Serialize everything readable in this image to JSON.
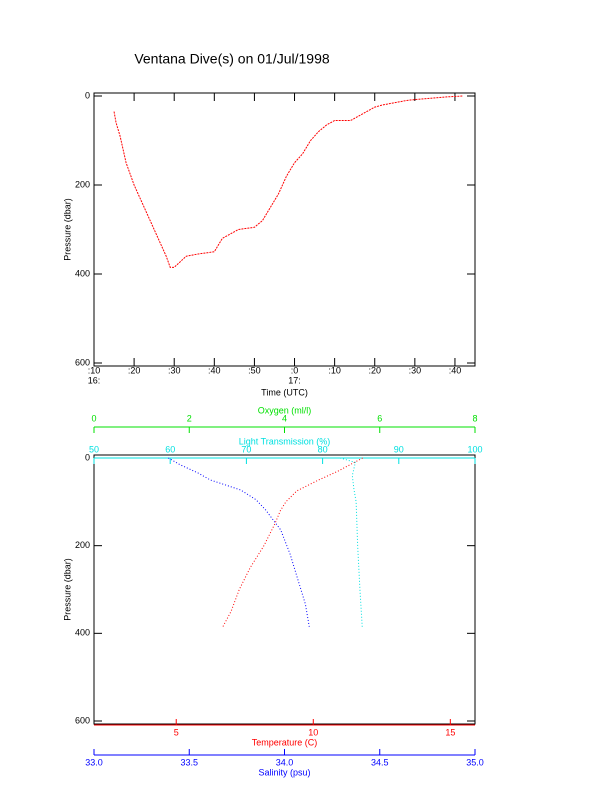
{
  "chart_data": [
    {
      "type": "line",
      "title": "Ventana Dive(s) on 01/Jul/1998",
      "xlabel": "Time (UTC)",
      "ylabel": "Pressure (dbar)",
      "xlim": [
        970,
        1065
      ],
      "ylim": [
        0,
        600
      ],
      "y_inverted": true,
      "xticks": [
        {
          "value": 970,
          "label": ":10"
        },
        {
          "value": 980,
          "label": ":20"
        },
        {
          "value": 990,
          "label": ":30"
        },
        {
          "value": 1000,
          "label": ":40"
        },
        {
          "value": 1010,
          "label": ":50"
        },
        {
          "value": 1020,
          "label": ":0"
        },
        {
          "value": 1030,
          "label": ":10"
        },
        {
          "value": 1040,
          "label": ":20"
        },
        {
          "value": 1050,
          "label": ":30"
        },
        {
          "value": 1060,
          "label": ":40"
        }
      ],
      "xtick_sublabels": [
        {
          "value": 970,
          "label": "16:"
        },
        {
          "value": 1020,
          "label": "17:"
        }
      ],
      "yticks": [
        0,
        200,
        400,
        600
      ],
      "color": "#ff0000",
      "x": [
        975,
        975.5,
        976.5,
        978,
        980,
        982,
        984,
        986,
        988,
        989,
        990,
        993,
        996,
        1000,
        1002,
        1006,
        1010,
        1012,
        1014,
        1016,
        1018,
        1020,
        1022,
        1024,
        1026,
        1028,
        1030,
        1034,
        1036,
        1038,
        1040,
        1042,
        1045,
        1048,
        1050,
        1054,
        1058,
        1062
      ],
      "values": [
        35,
        60,
        90,
        150,
        200,
        240,
        280,
        320,
        360,
        385,
        385,
        360,
        355,
        350,
        320,
        300,
        295,
        280,
        250,
        220,
        180,
        150,
        130,
        100,
        80,
        65,
        55,
        55,
        45,
        35,
        25,
        20,
        15,
        10,
        8,
        5,
        2,
        0
      ]
    },
    {
      "type": "scatter",
      "ylabel": "Pressure (dbar)",
      "ylim": [
        0,
        600
      ],
      "y_inverted": true,
      "yticks": [
        0,
        200,
        400,
        600
      ],
      "x_axes": [
        {
          "label": "Oxygen (ml/l)",
          "color": "#00e000",
          "lim": [
            0,
            8
          ],
          "ticks": [
            0,
            2,
            4,
            6,
            8
          ],
          "position": "top"
        },
        {
          "label": "Light Transmission (%)",
          "color": "#00e0e0",
          "lim": [
            50,
            100
          ],
          "ticks": [
            50,
            60,
            70,
            80,
            90,
            100
          ],
          "position": "top"
        },
        {
          "label": "Temperature (C)",
          "color": "#ff0000",
          "lim": [
            2,
            15.9
          ],
          "ticks": [
            5,
            10,
            15
          ],
          "position": "bottom"
        },
        {
          "label": "Salinity (psu)",
          "color": "#0000ff",
          "lim": [
            33,
            35
          ],
          "ticks": [
            {
              "value": 33,
              "label": "33.0"
            },
            33.5,
            {
              "value": 34,
              "label": "34.0"
            },
            34.5,
            {
              "value": 35,
              "label": "35.0"
            }
          ],
          "position": "bottom"
        }
      ],
      "series": [
        {
          "axis": 2,
          "color": "#ff0000",
          "x": [
            11.8,
            11.5,
            10.9,
            10.2,
            9.4,
            9.0,
            8.8,
            8.6,
            8.2,
            7.7,
            7.3,
            7.0,
            6.7
          ],
          "values": [
            0,
            10,
            30,
            50,
            75,
            100,
            120,
            150,
            200,
            250,
            300,
            350,
            385
          ]
        },
        {
          "axis": 3,
          "color": "#0000ff",
          "x": [
            33.39,
            33.45,
            33.55,
            33.61,
            33.77,
            33.85,
            33.9,
            33.98,
            34.03,
            34.07,
            34.11,
            34.13
          ],
          "values": [
            0,
            15,
            35,
            50,
            73,
            95,
            118,
            164,
            220,
            277,
            334,
            385
          ]
        },
        {
          "axis": 1,
          "color": "#00e0e0",
          "x": [
            82.3,
            84.3,
            83.9,
            84.1,
            84.4,
            84.6,
            84.9,
            85.2
          ],
          "values": [
            0,
            10,
            40,
            70,
            100,
            200,
            300,
            385
          ]
        }
      ]
    }
  ]
}
